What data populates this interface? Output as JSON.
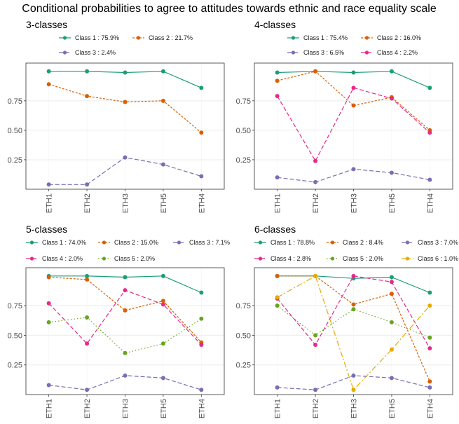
{
  "figure": {
    "title": "Conditional probabilities to agree to attitudes towards ethnic and race equality scale"
  },
  "colors": {
    "class1": "#1b9e77",
    "class2": "#d95f02",
    "class3": "#7570b3",
    "class4": "#e7298a",
    "class5": "#66a61e",
    "class6": "#e6ab02"
  },
  "chart_data": [
    {
      "type": "line",
      "title": "3-classes",
      "categories": [
        "ETH1",
        "ETH2",
        "ETH3",
        "ETH5",
        "ETH4"
      ],
      "yticks": [
        0.25,
        0.5,
        0.75
      ],
      "ytick_labels": [
        "0.25",
        "0.50",
        "0.75"
      ],
      "ylim": [
        0,
        1.07
      ],
      "series": [
        {
          "name": "Class 1 : 75.9%",
          "values": [
            1.0,
            1.0,
            0.99,
            1.0,
            0.86
          ]
        },
        {
          "name": "Class 2 : 21.7%",
          "values": [
            0.89,
            0.79,
            0.74,
            0.75,
            0.48
          ]
        },
        {
          "name": "Class 3 : 2.4%",
          "values": [
            0.04,
            0.04,
            0.27,
            0.21,
            0.11
          ]
        }
      ]
    },
    {
      "type": "line",
      "title": "4-classes",
      "categories": [
        "ETH1",
        "ETH2",
        "ETH3",
        "ETH5",
        "ETH4"
      ],
      "yticks": [
        0.25,
        0.5,
        0.75
      ],
      "ytick_labels": [
        "0.25",
        "0.50",
        "0.75"
      ],
      "ylim": [
        0,
        1.07
      ],
      "series": [
        {
          "name": "Class 1 : 75.4%",
          "values": [
            0.99,
            1.0,
            0.99,
            1.0,
            0.86
          ]
        },
        {
          "name": "Class 2 : 16.0%",
          "values": [
            0.92,
            1.0,
            0.71,
            0.78,
            0.5
          ]
        },
        {
          "name": "Class 3 : 6.5%",
          "values": [
            0.1,
            0.06,
            0.17,
            0.14,
            0.08
          ]
        },
        {
          "name": "Class 4 : 2.2%",
          "values": [
            0.79,
            0.24,
            0.86,
            0.77,
            0.48
          ]
        }
      ]
    },
    {
      "type": "line",
      "title": "5-classes",
      "categories": [
        "ETH1",
        "ETH2",
        "ETH3",
        "ETH5",
        "ETH4"
      ],
      "yticks": [
        0.25,
        0.5,
        0.75
      ],
      "ytick_labels": [
        "0.25",
        "0.50",
        "0.75"
      ],
      "ylim": [
        0,
        1.07
      ],
      "series": [
        {
          "name": "Class 1 : 74.0%",
          "values": [
            1.0,
            1.0,
            0.99,
            1.0,
            0.86
          ]
        },
        {
          "name": "Class 2 : 15.0%",
          "values": [
            0.99,
            0.97,
            0.71,
            0.79,
            0.44
          ]
        },
        {
          "name": "Class 3 : 7.1%",
          "values": [
            0.08,
            0.04,
            0.16,
            0.14,
            0.04
          ]
        },
        {
          "name": "Class 4 : 2.0%",
          "values": [
            0.77,
            0.43,
            0.88,
            0.76,
            0.42
          ]
        },
        {
          "name": "Class 5 : 2.0%",
          "values": [
            0.61,
            0.65,
            0.35,
            0.43,
            0.64
          ]
        }
      ]
    },
    {
      "type": "line",
      "title": "6-classes",
      "categories": [
        "ETH1",
        "ETH2",
        "ETH3",
        "ETH5",
        "ETH4"
      ],
      "yticks": [
        0.25,
        0.5,
        0.75
      ],
      "ytick_labels": [
        "0.25",
        "0.50",
        "0.75"
      ],
      "ylim": [
        0,
        1.07
      ],
      "series": [
        {
          "name": "Class 1 : 78.8%",
          "values": [
            1.0,
            1.0,
            0.98,
            0.99,
            0.86
          ]
        },
        {
          "name": "Class 2 : 8.4%",
          "values": [
            1.0,
            1.0,
            0.76,
            0.85,
            0.11
          ]
        },
        {
          "name": "Class 3 : 7.0%",
          "values": [
            0.06,
            0.04,
            0.16,
            0.14,
            0.06
          ]
        },
        {
          "name": "Class 4 : 2.8%",
          "values": [
            0.81,
            0.42,
            1.0,
            0.95,
            0.39
          ]
        },
        {
          "name": "Class 5 : 2.0%",
          "values": [
            0.75,
            0.5,
            0.72,
            0.61,
            0.48
          ]
        },
        {
          "name": "Class 6 : 1.0%",
          "values": [
            0.82,
            1.0,
            0.04,
            0.38,
            0.75
          ]
        }
      ]
    }
  ]
}
